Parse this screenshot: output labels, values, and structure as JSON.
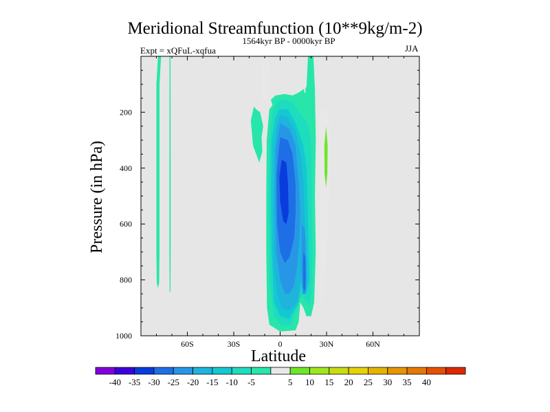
{
  "chart_data": {
    "type": "heatmap",
    "title": "Meridional Streamfunction (10**9kg/m-2)",
    "left_string": "Expt = xQFuL-xqfua",
    "center_string": "1564kyr BP - 0000kyr BP",
    "right_string": "JJA",
    "xlabel": "Latitude",
    "ylabel": "Pressure (in hPa)",
    "xlim": [
      -90,
      90
    ],
    "ylim": [
      1000,
      0
    ],
    "x_ticks": [
      {
        "value": -60,
        "label": "60S"
      },
      {
        "value": -30,
        "label": "30S"
      },
      {
        "value": 0,
        "label": "0"
      },
      {
        "value": 30,
        "label": "30N"
      },
      {
        "value": 60,
        "label": "60N"
      }
    ],
    "y_ticks": [
      200,
      400,
      600,
      800,
      1000
    ],
    "background_color": "#e6e6e6",
    "colorbar": {
      "colors": [
        "#8200dc",
        "#3c00dc",
        "#0a3cdc",
        "#1e6ee6",
        "#2896e6",
        "#1eb4dc",
        "#14c8d2",
        "#1edcbe",
        "#28e6aa",
        "#e8e8e8",
        "#6ee628",
        "#a0e61e",
        "#c8dc14",
        "#e6d20a",
        "#e6b400",
        "#e69600",
        "#e67800",
        "#e65000",
        "#dc2800"
      ],
      "levels": [
        -40,
        -35,
        -30,
        -25,
        -20,
        -15,
        -10,
        -5,
        5,
        10,
        15,
        20,
        25,
        30,
        35,
        40
      ]
    },
    "regions": [
      {
        "name": "weak-negative-sliver-high-lat-a",
        "value": -5,
        "polygon": [
          [
            -79,
            0
          ],
          [
            -80,
            100
          ],
          [
            -80,
            300
          ],
          [
            -80,
            450
          ],
          [
            -80,
            600
          ],
          [
            -80,
            700
          ],
          [
            -79.8,
            810
          ],
          [
            -79,
            830
          ],
          [
            -78.2,
            810
          ],
          [
            -78,
            700
          ],
          [
            -78,
            600
          ],
          [
            -78,
            450
          ],
          [
            -78,
            300
          ],
          [
            -78,
            100
          ],
          [
            -77,
            0
          ]
        ]
      },
      {
        "name": "weak-negative-sliver-high-lat-b",
        "value": -5,
        "polygon": [
          [
            -71.5,
            0
          ],
          [
            -71.6,
            400
          ],
          [
            -71.6,
            700
          ],
          [
            -71.4,
            840
          ],
          [
            -70.9,
            845
          ],
          [
            -70.8,
            700
          ],
          [
            -70.8,
            400
          ],
          [
            -70.9,
            0
          ]
        ]
      },
      {
        "name": "upper-tropo-weak-negative-left",
        "value": -5,
        "polygon": [
          [
            -15.5,
            190
          ],
          [
            -13,
            200
          ],
          [
            -11,
            250
          ],
          [
            -12,
            290
          ],
          [
            -11.5,
            340
          ],
          [
            -13.5,
            380
          ],
          [
            -17.5,
            320
          ],
          [
            -19,
            230
          ],
          [
            -17,
            180
          ]
        ]
      },
      {
        "name": "stratospheric-positive-plume",
        "value": 5,
        "polygon": [
          [
            -11.7,
            0
          ],
          [
            -11.8,
            60
          ],
          [
            -12,
            140
          ],
          [
            -11,
            160
          ],
          [
            -9,
            155
          ],
          [
            -7.7,
            120
          ],
          [
            -7.3,
            40
          ],
          [
            -7,
            0
          ]
        ]
      },
      {
        "name": "tropical-weak-negative-envelope",
        "value": -5,
        "polygon": [
          [
            -6,
            155
          ],
          [
            -3,
            140
          ],
          [
            3,
            135
          ],
          [
            8,
            140
          ],
          [
            12,
            130
          ],
          [
            17,
            110
          ],
          [
            18,
            0
          ],
          [
            21.5,
            0
          ],
          [
            22.5,
            120
          ],
          [
            23,
            300
          ],
          [
            22.5,
            500
          ],
          [
            23,
            700
          ],
          [
            22,
            880
          ],
          [
            20,
            930
          ],
          [
            17,
            930
          ],
          [
            15,
            900
          ],
          [
            13,
            880
          ],
          [
            12,
            950
          ],
          [
            10,
            980
          ],
          [
            0,
            985
          ],
          [
            -7,
            960
          ],
          [
            -8.5,
            900
          ],
          [
            -9,
            700
          ],
          [
            -9,
            500
          ],
          [
            -8.7,
            300
          ],
          [
            -7,
            190
          ],
          [
            -5,
            175
          ]
        ]
      },
      {
        "name": "tropical-gap-at-14N",
        "value": 0,
        "polygon": [
          [
            14.8,
            0
          ],
          [
            15.3,
            70
          ],
          [
            15.6,
            130
          ],
          [
            16.4,
            130
          ],
          [
            16.5,
            70
          ],
          [
            16.7,
            0
          ]
        ]
      },
      {
        "name": "tropical-weak-negative-core",
        "value": -10,
        "polygon": [
          [
            -2,
            160
          ],
          [
            3,
            155
          ],
          [
            8,
            165
          ],
          [
            12,
            200
          ],
          [
            17,
            230
          ],
          [
            20,
            300
          ],
          [
            20.5,
            500
          ],
          [
            21,
            700
          ],
          [
            20.3,
            840
          ],
          [
            19,
            890
          ],
          [
            17,
            880
          ],
          [
            15,
            860
          ],
          [
            13,
            860
          ],
          [
            11,
            900
          ],
          [
            7,
            960
          ],
          [
            1,
            965
          ],
          [
            -4,
            930
          ],
          [
            -7,
            800
          ],
          [
            -7,
            700
          ],
          [
            -7.5,
            500
          ],
          [
            -6.7,
            300
          ],
          [
            -5,
            200
          ]
        ]
      },
      {
        "name": "tropical-negative-15",
        "value": -15,
        "polygon": [
          [
            -0.5,
            190
          ],
          [
            5,
            190
          ],
          [
            10,
            240
          ],
          [
            15,
            320
          ],
          [
            17,
            400
          ],
          [
            18,
            560
          ],
          [
            18.5,
            700
          ],
          [
            19,
            800
          ],
          [
            17,
            850
          ],
          [
            14,
            820
          ],
          [
            12,
            880
          ],
          [
            6,
            940
          ],
          [
            0,
            930
          ],
          [
            -4,
            880
          ],
          [
            -5.5,
            700
          ],
          [
            -6,
            500
          ],
          [
            -5.5,
            300
          ],
          [
            -3,
            220
          ]
        ]
      },
      {
        "name": "tropical-negative-20",
        "value": -20,
        "polygon": [
          [
            0,
            210
          ],
          [
            5,
            220
          ],
          [
            10,
            270
          ],
          [
            13.5,
            360
          ],
          [
            15,
            450
          ],
          [
            16,
            600
          ],
          [
            17,
            720
          ],
          [
            17.7,
            820
          ],
          [
            16,
            850
          ],
          [
            13,
            800
          ],
          [
            11,
            880
          ],
          [
            6,
            910
          ],
          [
            1,
            900
          ],
          [
            -2,
            850
          ],
          [
            -4,
            750
          ],
          [
            -4.5,
            550
          ],
          [
            -4,
            330
          ],
          [
            -2,
            250
          ]
        ]
      },
      {
        "name": "tropical-negative-25",
        "value": -25,
        "polygon": [
          [
            0,
            240
          ],
          [
            6,
            260
          ],
          [
            10,
            320
          ],
          [
            12,
            450
          ],
          [
            13,
            560
          ],
          [
            12.5,
            650
          ],
          [
            11,
            750
          ],
          [
            9,
            820
          ],
          [
            6,
            850
          ],
          [
            3,
            850
          ],
          [
            0,
            800
          ],
          [
            -2.5,
            700
          ],
          [
            -3.2,
            500
          ],
          [
            -2.8,
            330
          ]
        ]
      },
      {
        "name": "tropical-negative-25-lower-lobe",
        "value": -25,
        "polygon": [
          [
            14,
            600
          ],
          [
            16,
            620
          ],
          [
            17,
            760
          ],
          [
            16.5,
            850
          ],
          [
            14.5,
            850
          ],
          [
            13.8,
            760
          ]
        ]
      },
      {
        "name": "tropical-negative-30",
        "value": -30,
        "polygon": [
          [
            0,
            290
          ],
          [
            5,
            300
          ],
          [
            8,
            350
          ],
          [
            10,
            460
          ],
          [
            10,
            560
          ],
          [
            9,
            650
          ],
          [
            6,
            720
          ],
          [
            3,
            740
          ],
          [
            0,
            700
          ],
          [
            -2,
            600
          ],
          [
            -2.3,
            420
          ]
        ]
      },
      {
        "name": "tropical-negative-30-lower-lobe",
        "value": -30,
        "polygon": [
          [
            15,
            700
          ],
          [
            16.3,
            720
          ],
          [
            16.5,
            800
          ],
          [
            16,
            840
          ],
          [
            15,
            830
          ],
          [
            14.8,
            760
          ]
        ]
      },
      {
        "name": "tropical-negative-35-core",
        "value": -35,
        "polygon": [
          [
            1,
            370
          ],
          [
            4,
            380
          ],
          [
            5,
            450
          ],
          [
            5.5,
            560
          ],
          [
            4,
            600
          ],
          [
            2,
            590
          ],
          [
            0,
            520
          ],
          [
            -0.5,
            430
          ]
        ]
      },
      {
        "name": "subtropical-positive-5",
        "value": 5,
        "polygon": [
          [
            29.5,
            180
          ],
          [
            31.5,
            230
          ],
          [
            32,
            300
          ],
          [
            32,
            450
          ],
          [
            31,
            600
          ],
          [
            29.5,
            750
          ],
          [
            28,
            850
          ],
          [
            26.5,
            880
          ],
          [
            25.5,
            860
          ],
          [
            25.5,
            700
          ],
          [
            26,
            550
          ],
          [
            25.5,
            400
          ],
          [
            25,
            260
          ],
          [
            25.5,
            210
          ],
          [
            27,
            200
          ]
        ]
      },
      {
        "name": "subtropical-positive-10",
        "value": 10,
        "polygon": [
          [
            29.7,
            250
          ],
          [
            30.7,
            320
          ],
          [
            30.5,
            420
          ],
          [
            29.7,
            470
          ],
          [
            28.7,
            420
          ],
          [
            28.6,
            320
          ]
        ]
      }
    ]
  }
}
